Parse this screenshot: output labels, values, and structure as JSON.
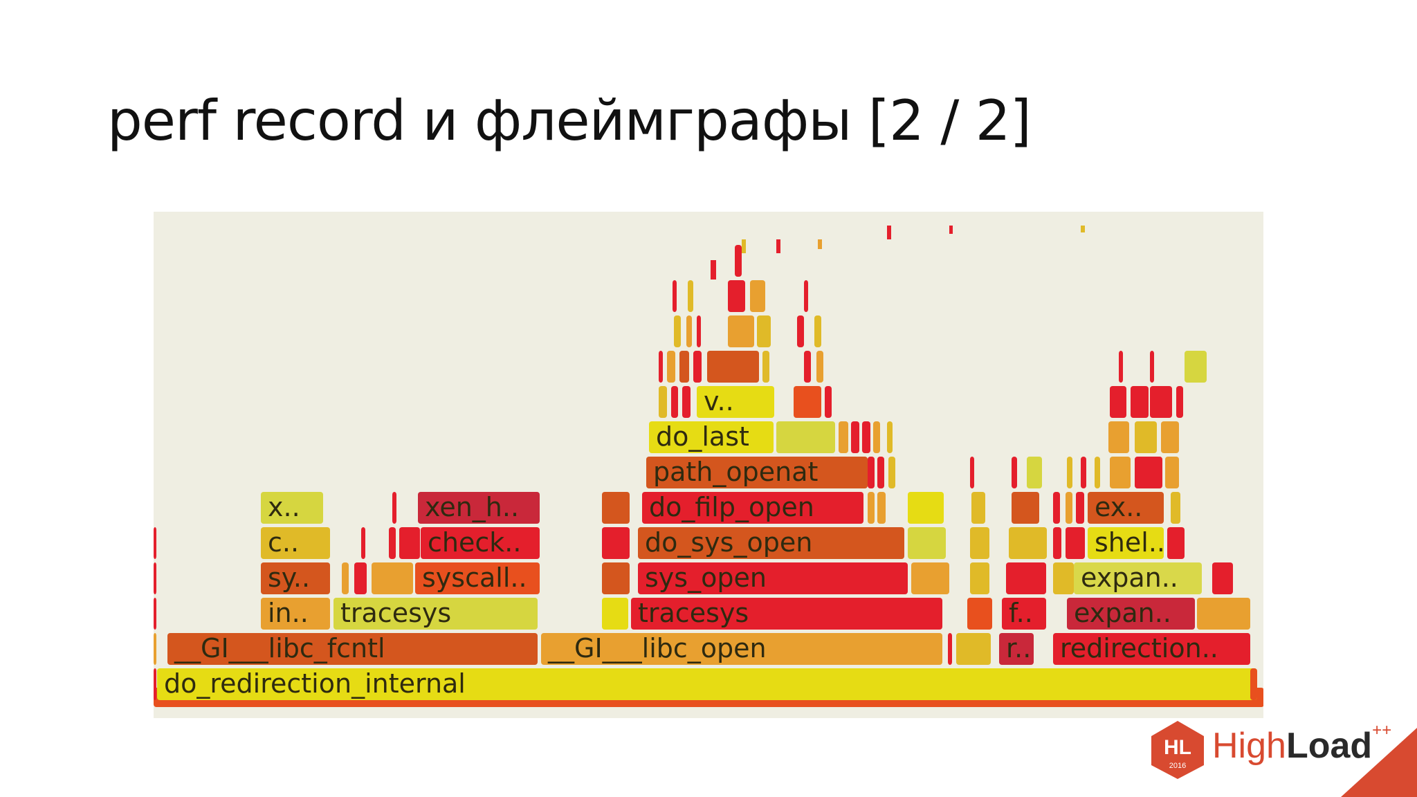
{
  "slide": {
    "title": "perf record и флеймграфы [2 / 2]"
  },
  "flamegraph": {
    "frame_labels": {
      "do_redirection_internal": "do_redirection_internal",
      "gi_libc_fcntl": "__GI___libc_fcntl",
      "gi_libc_open": "__GI___libc_open",
      "r": "r..",
      "redirection": "redirection..",
      "in": "in..",
      "tracesys_1": "tracesys",
      "tracesys_2": "tracesys",
      "f": "f..",
      "expan_1": "expan..",
      "sy": "sy..",
      "syscall": "syscall..",
      "sys_open": "sys_open",
      "expan_2": "expan..",
      "c": "c..",
      "check": "check..",
      "do_sys_open": "do_sys_open",
      "shel": "shel..",
      "x": "x..",
      "xen_h": "xen_h..",
      "do_filp_open": "do_filp_open",
      "ex": "ex..",
      "path_openat": "path_openat",
      "do_last": "do_last",
      "v": "v.."
    }
  },
  "logo": {
    "badge_text": "HL",
    "badge_year": "2016",
    "name_light": "High",
    "name_bold": "Load",
    "superscript": "++"
  }
}
